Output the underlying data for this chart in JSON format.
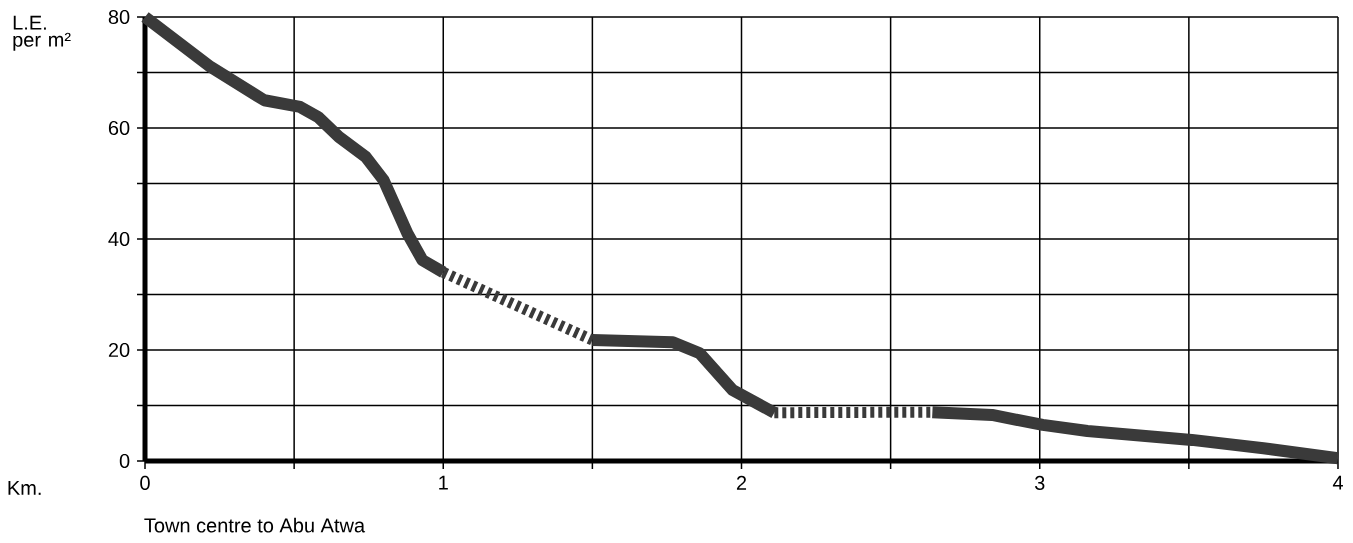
{
  "chart_data": {
    "type": "line",
    "xlabel": "Town centre to Abu Atwa",
    "ylabel": "L.E. per m²",
    "annotations": [
      "Km."
    ],
    "xlim": [
      0,
      4
    ],
    "ylim": [
      0,
      80
    ],
    "xticks": [
      0,
      {
        "value": 0.5,
        "label": null
      },
      1,
      {
        "value": 1.5,
        "label": null
      },
      2,
      {
        "value": 2.5,
        "label": null
      },
      3,
      {
        "value": 3.5,
        "label": null
      },
      4
    ],
    "yticks": [
      0,
      {
        "value": 10,
        "label": null
      },
      20,
      {
        "value": 30,
        "label": null
      },
      40,
      {
        "value": 50,
        "label": null
      },
      60,
      {
        "value": 70,
        "label": null
      },
      80
    ],
    "grid": true,
    "series": [
      {
        "color": "#3a3a3a",
        "line_style": "solid",
        "x": [
          0,
          0.22,
          0.4,
          0.52,
          0.58,
          0.65,
          0.74,
          0.8,
          0.88,
          0.93,
          1.0
        ],
        "values": [
          80,
          71,
          65,
          63.8,
          62,
          58.4,
          54.8,
          50.6,
          41,
          36.2,
          34
        ]
      },
      {
        "color": "#3a3a3a",
        "line_style": "dashed",
        "x": [
          1.0,
          1.5
        ],
        "values": [
          34,
          21.8
        ]
      },
      {
        "color": "#3a3a3a",
        "line_style": "solid",
        "x": [
          1.5,
          1.77,
          1.86,
          1.97,
          2.11
        ],
        "values": [
          21.8,
          21.4,
          19.4,
          12.8,
          8.7
        ]
      },
      {
        "color": "#3a3a3a",
        "line_style": "dashed",
        "x": [
          2.11,
          2.64
        ],
        "values": [
          8.7,
          8.8
        ]
      },
      {
        "color": "#3a3a3a",
        "line_style": "solid",
        "x": [
          2.64,
          2.84,
          3.01,
          3.16,
          3.51,
          3.75,
          4.0
        ],
        "values": [
          8.8,
          8.3,
          6.5,
          5.4,
          3.8,
          2.3,
          0.5
        ]
      }
    ]
  }
}
